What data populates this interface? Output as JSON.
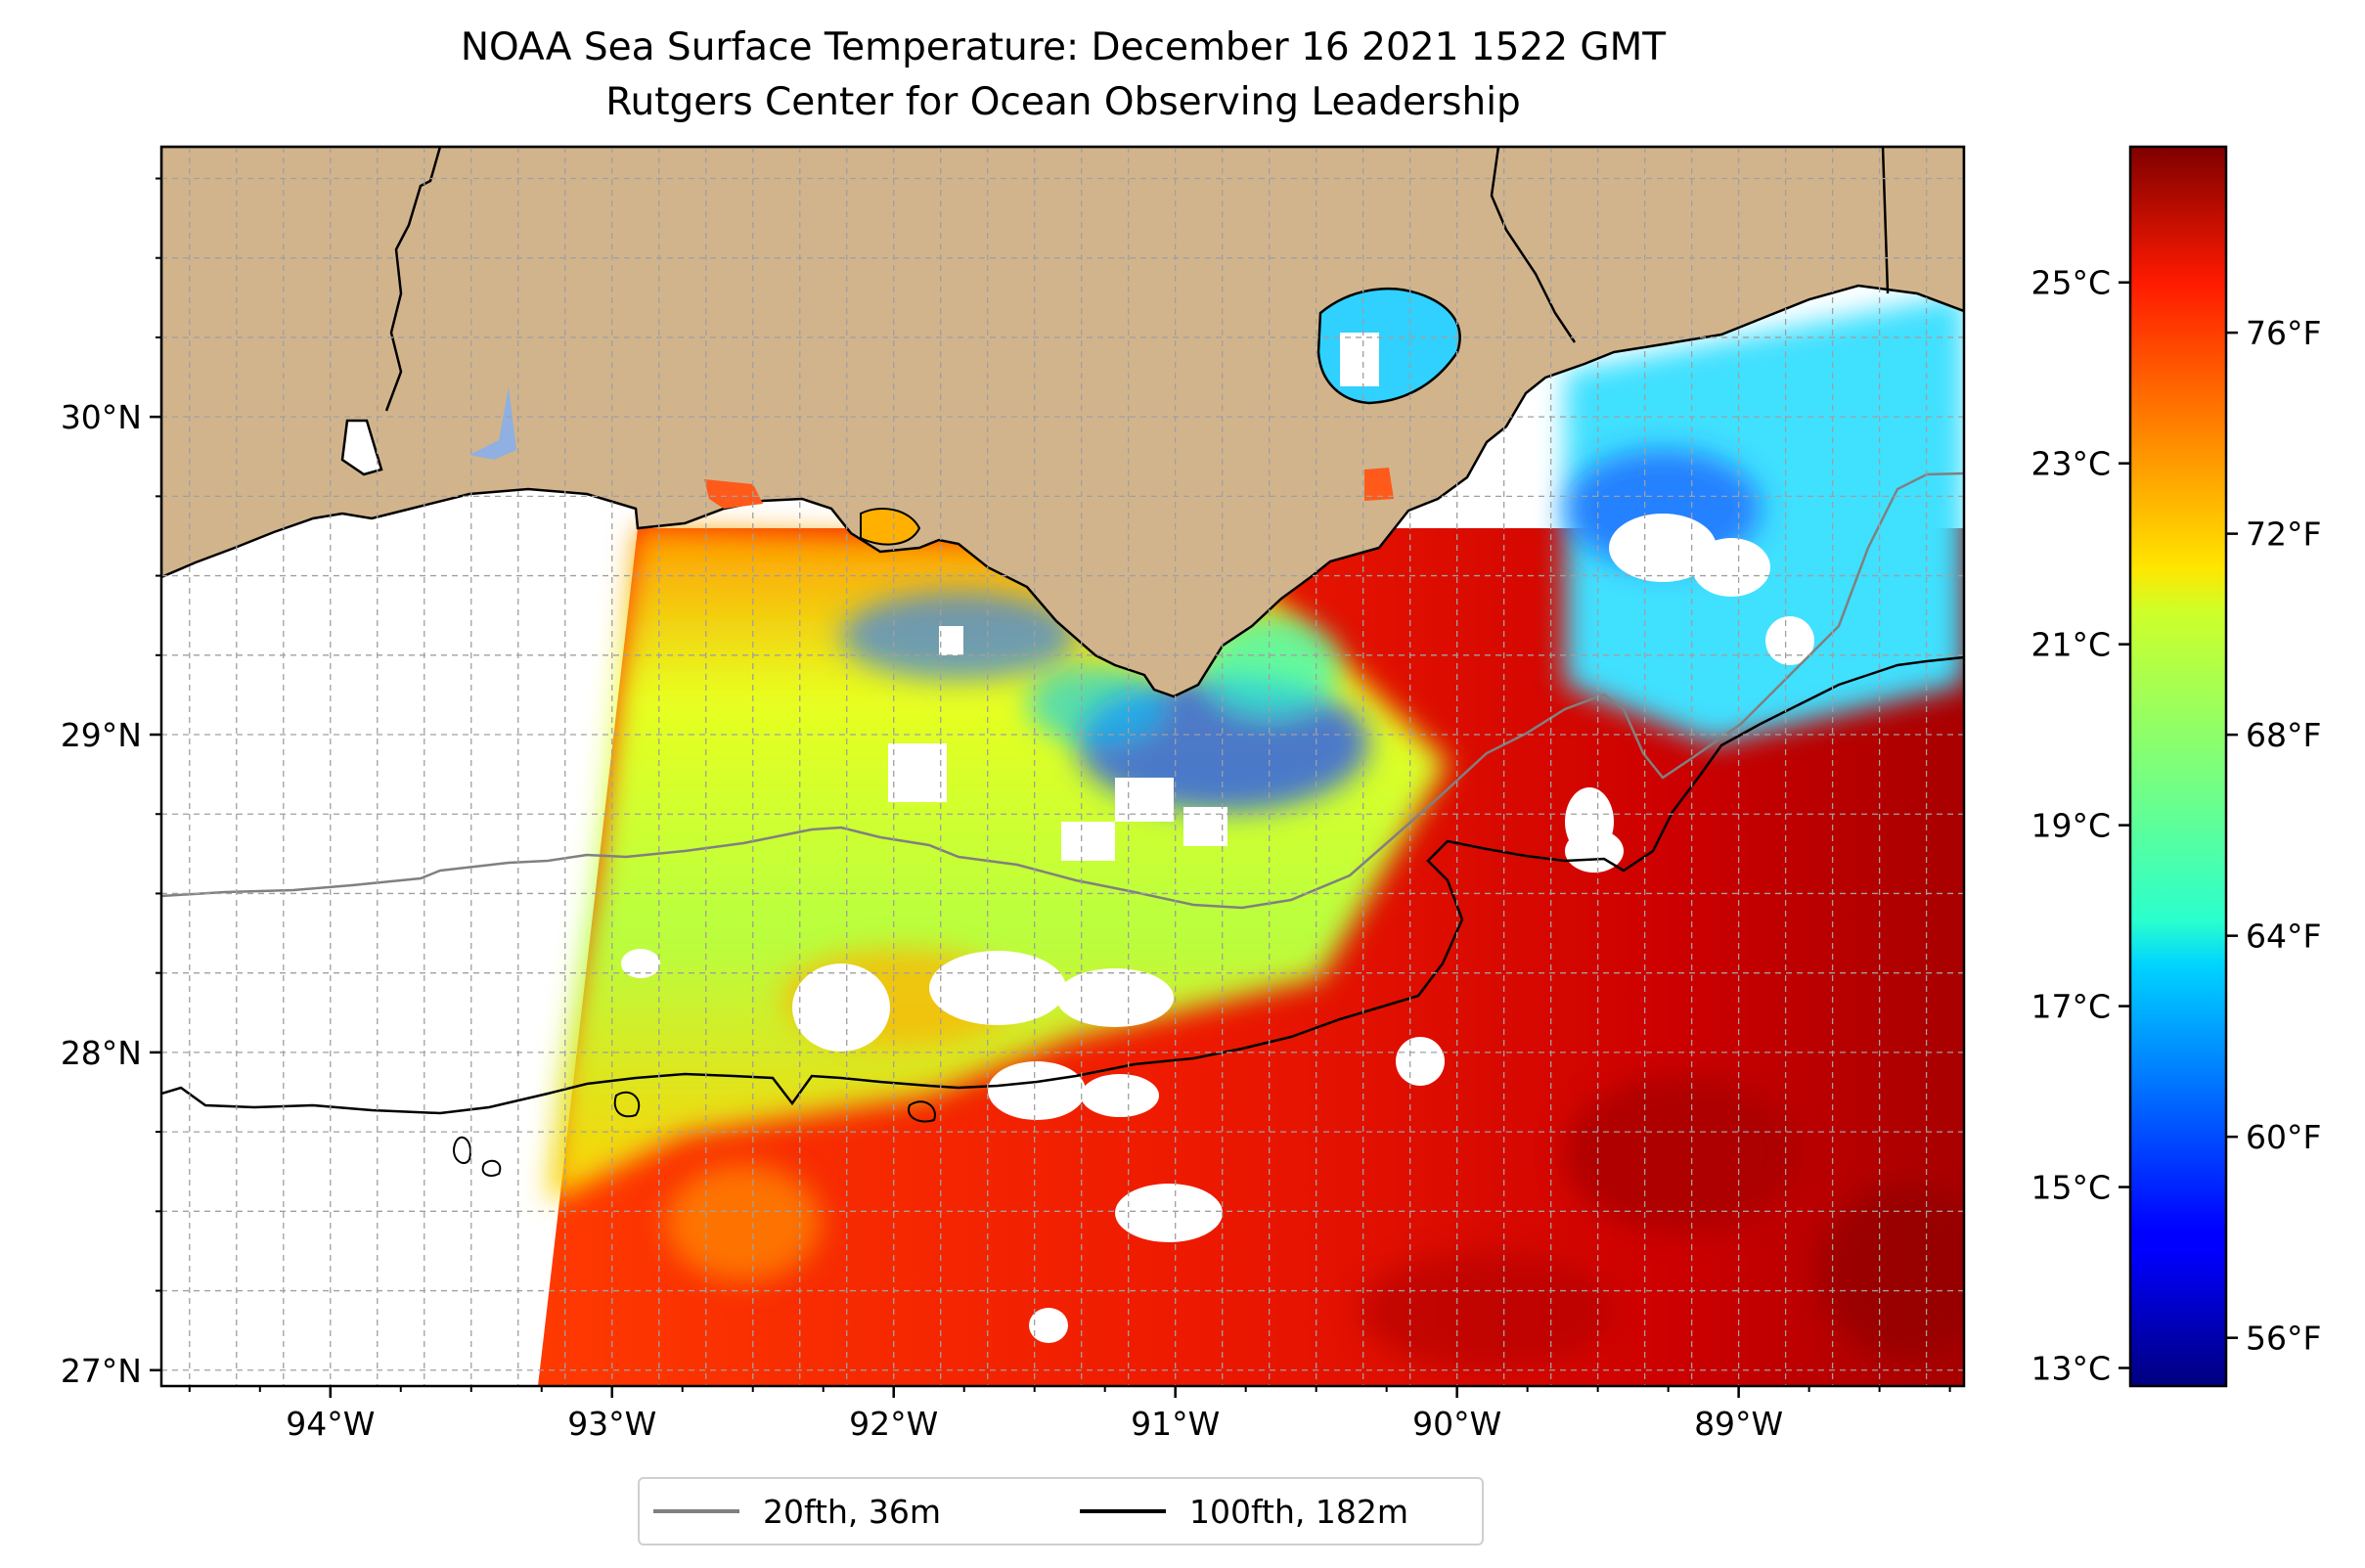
{
  "title": {
    "line1": "NOAA Sea Surface Temperature: December 16 2021 1522 GMT",
    "line2": "Rutgers Center for Ocean Observing Leadership"
  },
  "map": {
    "lon_range": [
      -94.6,
      -88.2
    ],
    "lat_range": [
      26.95,
      30.85
    ],
    "lon_ticks": [
      {
        "value": -94,
        "label": "94°W"
      },
      {
        "value": -93,
        "label": "93°W"
      },
      {
        "value": -92,
        "label": "92°W"
      },
      {
        "value": -91,
        "label": "91°W"
      },
      {
        "value": -90,
        "label": "90°W"
      },
      {
        "value": -89,
        "label": "89°W"
      }
    ],
    "lat_ticks": [
      {
        "value": 27,
        "label": "27°N"
      },
      {
        "value": 28,
        "label": "28°N"
      },
      {
        "value": 29,
        "label": "29°N"
      },
      {
        "value": 30,
        "label": "30°N"
      }
    ],
    "gridlines": true,
    "land_color": "#d2b48c",
    "missing_color": "#ffffff"
  },
  "colorbar": {
    "colormap": "jet",
    "celsius_range": [
      12.8,
      26.5
    ],
    "celsius_ticks": [
      {
        "value": 13,
        "label": "13°C"
      },
      {
        "value": 15,
        "label": "15°C"
      },
      {
        "value": 17,
        "label": "17°C"
      },
      {
        "value": 19,
        "label": "19°C"
      },
      {
        "value": 21,
        "label": "21°C"
      },
      {
        "value": 23,
        "label": "23°C"
      },
      {
        "value": 25,
        "label": "25°C"
      }
    ],
    "fahrenheit_ticks": [
      {
        "value": 56,
        "label": "56°F"
      },
      {
        "value": 60,
        "label": "60°F"
      },
      {
        "value": 64,
        "label": "64°F"
      },
      {
        "value": 68,
        "label": "68°F"
      },
      {
        "value": 72,
        "label": "72°F"
      },
      {
        "value": 76,
        "label": "76°F"
      }
    ]
  },
  "legend": {
    "placement": "bottom-center",
    "items": [
      {
        "label": "20fth, 36m",
        "color": "#808080"
      },
      {
        "label": "100fth, 182m",
        "color": "#000000"
      }
    ]
  }
}
